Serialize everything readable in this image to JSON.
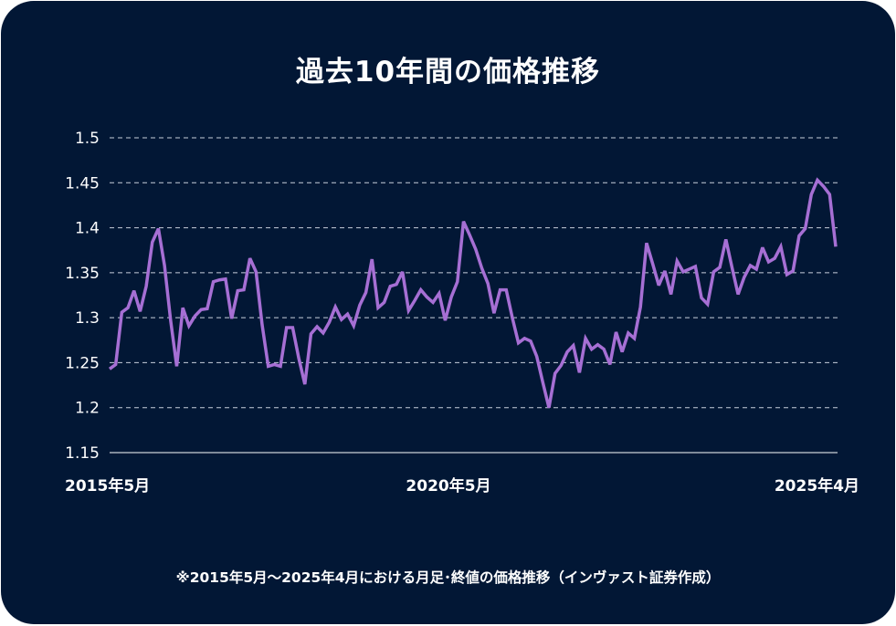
{
  "chart_data": {
    "type": "line",
    "title": "過去10年間の価格推移",
    "footnote": "※2015年5月～2025年4月における月足･終値の価格推移（インヴァスト証券作成）",
    "x_start": "2015年5月",
    "x_end": "2025年4月",
    "x_tick_labels": [
      "2015年5月",
      "2020年5月",
      "2025年4月"
    ],
    "y_tick_labels": [
      "1.5",
      "1.45",
      "1.4",
      "1.35",
      "1.3",
      "1.25",
      "1.2",
      "1.15"
    ],
    "ylim": [
      1.15,
      1.5
    ],
    "grid": true,
    "line_color": "#a66fd4",
    "background_color": "#021735",
    "values": [
      1.243,
      1.248,
      1.306,
      1.311,
      1.33,
      1.307,
      1.335,
      1.384,
      1.399,
      1.358,
      1.297,
      1.246,
      1.311,
      1.291,
      1.302,
      1.309,
      1.31,
      1.34,
      1.342,
      1.343,
      1.299,
      1.33,
      1.331,
      1.366,
      1.351,
      1.292,
      1.246,
      1.248,
      1.246,
      1.289,
      1.289,
      1.255,
      1.226,
      1.282,
      1.29,
      1.283,
      1.295,
      1.312,
      1.298,
      1.304,
      1.291,
      1.314,
      1.328,
      1.365,
      1.311,
      1.317,
      1.335,
      1.337,
      1.351,
      1.308,
      1.319,
      1.331,
      1.323,
      1.317,
      1.327,
      1.297,
      1.323,
      1.34,
      1.407,
      1.392,
      1.376,
      1.355,
      1.338,
      1.305,
      1.331,
      1.331,
      1.3,
      1.272,
      1.277,
      1.274,
      1.257,
      1.228,
      1.2,
      1.238,
      1.247,
      1.262,
      1.269,
      1.239,
      1.277,
      1.265,
      1.27,
      1.265,
      1.248,
      1.284,
      1.262,
      1.283,
      1.277,
      1.312,
      1.383,
      1.36,
      1.336,
      1.352,
      1.326,
      1.363,
      1.351,
      1.354,
      1.357,
      1.322,
      1.315,
      1.351,
      1.356,
      1.387,
      1.356,
      1.326,
      1.345,
      1.358,
      1.354,
      1.378,
      1.362,
      1.366,
      1.379,
      1.348,
      1.352,
      1.391,
      1.399,
      1.437,
      1.453,
      1.446,
      1.437,
      1.379
    ]
  }
}
